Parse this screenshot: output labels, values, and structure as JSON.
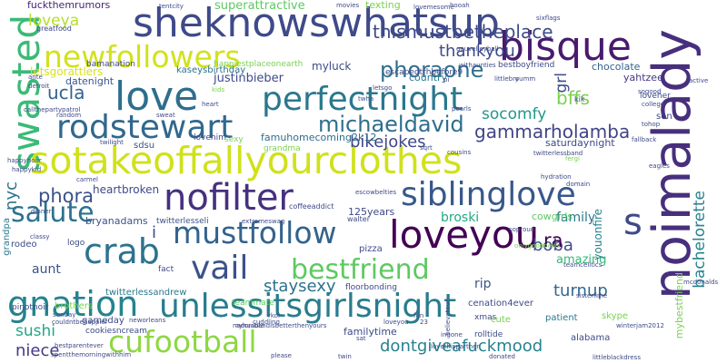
{
  "words": [
    {
      "text": "sheknowswhatsup",
      "color": "#3e4a89"
    },
    {
      "text": "bisque",
      "color": "#481b6d"
    },
    {
      "text": "newfollowers",
      "color": "#d2e21b"
    },
    {
      "text": "noimalady",
      "color": "#472f7d"
    },
    {
      "text": "love",
      "color": "#2e6e8e"
    },
    {
      "text": "perfectnight",
      "color": "#2a788e"
    },
    {
      "text": "swasted",
      "color": "#3aba76"
    },
    {
      "text": "rodstewart",
      "color": "#31688e"
    },
    {
      "text": "sotakeoffallyourclothes",
      "color": "#d0e11c"
    },
    {
      "text": "nofilter",
      "color": "#46307e"
    },
    {
      "text": "siblinglove",
      "color": "#38588c"
    },
    {
      "text": "salute",
      "color": "#2c728e"
    },
    {
      "text": "mustfollow",
      "color": "#33638d"
    },
    {
      "text": "loveyou",
      "color": "#440154"
    },
    {
      "text": "crab",
      "color": "#2c738e"
    },
    {
      "text": "vail",
      "color": "#3b528b"
    },
    {
      "text": "bestfriend",
      "color": "#5ec962"
    },
    {
      "text": "gnation",
      "color": "#25838e"
    },
    {
      "text": "unlessitsgirlsnight",
      "color": "#287c8e"
    },
    {
      "text": "cufootball",
      "color": "#8fd744"
    },
    {
      "text": "dontgiveafuckmood",
      "color": "#26828e"
    },
    {
      "text": "s",
      "color": "#3e4a89"
    },
    {
      "text": "thismustbetheplace",
      "color": "#3e4a89"
    },
    {
      "text": "loveya",
      "color": "#b5de2b"
    },
    {
      "text": "thankyou",
      "color": "#3e4a89"
    },
    {
      "text": "phoraone",
      "color": "#2d708e"
    },
    {
      "text": "michaeldavid",
      "color": "#2e6f8e"
    },
    {
      "text": "gammarholamba",
      "color": "#414487"
    },
    {
      "text": "bikejokes",
      "color": "#3f4788"
    },
    {
      "text": "bachelorette",
      "color": "#25838e"
    },
    {
      "text": "bffs",
      "color": "#7ad151"
    },
    {
      "text": "socomfy",
      "color": "#1f988b"
    },
    {
      "text": "ucla",
      "color": "#33638d"
    },
    {
      "text": "fuckthemrumors",
      "color": "#482475"
    },
    {
      "text": "superattractive",
      "color": "#5ec962"
    },
    {
      "text": "texting",
      "color": "#7ad151"
    },
    {
      "text": "justinbieber",
      "color": "#3e4a89"
    },
    {
      "text": "phora",
      "color": "#3b528b"
    },
    {
      "text": "nyc",
      "color": "#2c728e"
    },
    {
      "text": "heartbroken",
      "color": "#3e4a89"
    },
    {
      "text": "bryanadams",
      "color": "#3b528b"
    },
    {
      "text": "broski",
      "color": "#22a884"
    },
    {
      "text": "family",
      "color": "#2a788e"
    },
    {
      "text": "boba",
      "color": "#3e4a89"
    },
    {
      "text": "ra",
      "color": "#440154"
    },
    {
      "text": "turnup",
      "color": "#31688e"
    },
    {
      "text": "staysexy",
      "color": "#2c728e"
    },
    {
      "text": "rip",
      "color": "#3b528b"
    },
    {
      "text": "amazing",
      "color": "#35b779"
    },
    {
      "text": "aunt",
      "color": "#3b528b"
    },
    {
      "text": "sushi",
      "color": "#22a884"
    },
    {
      "text": "niece",
      "color": "#443983"
    },
    {
      "text": "i",
      "color": "#3e4a89"
    },
    {
      "text": "myluck",
      "color": "#3e4a89"
    },
    {
      "text": "country",
      "color": "#2a788e"
    },
    {
      "text": "letsgorattlers",
      "color": "#d8e219"
    },
    {
      "text": "datenight",
      "color": "#39568c"
    },
    {
      "text": "kaseysbirthday",
      "color": "#2c728e"
    },
    {
      "text": "bestboyfriend",
      "color": "#3e4a89"
    },
    {
      "text": "chocolate",
      "color": "#33638d"
    },
    {
      "text": "yahtzee",
      "color": "#453781"
    },
    {
      "text": "happiestplaceonearth",
      "color": "#7ad151"
    },
    {
      "text": "escapedtrhbefore9",
      "color": "#3e4a89"
    },
    {
      "text": "grl",
      "color": "#3e4a89"
    },
    {
      "text": "famuhomecoming2k12",
      "color": "#2e6e8e"
    },
    {
      "text": "saturdaynight",
      "color": "#3e4a89"
    },
    {
      "text": "grandma",
      "color": "#7ad151"
    },
    {
      "text": "sdsu",
      "color": "#3b528b"
    },
    {
      "text": "125years",
      "color": "#3e4a89"
    },
    {
      "text": "cowgirls",
      "color": "#5ec962"
    },
    {
      "text": "youonfire",
      "color": "#25838e"
    },
    {
      "text": "twitterlesseli",
      "color": "#3b528b"
    },
    {
      "text": "rodeo",
      "color": "#3e4a89"
    },
    {
      "text": "gameday",
      "color": "#3e4a89"
    },
    {
      "text": "twitterlessandrew",
      "color": "#2a788e"
    },
    {
      "text": "floorbonding",
      "color": "#3e4a89"
    },
    {
      "text": "familytime",
      "color": "#3e4a89"
    },
    {
      "text": "cookiesncream",
      "color": "#3e4a89"
    },
    {
      "text": "alabama",
      "color": "#3e4a89"
    },
    {
      "text": "rolltide",
      "color": "#3e4a89"
    },
    {
      "text": "cenation4ever",
      "color": "#3e4a89"
    },
    {
      "text": "patient",
      "color": "#2a788e"
    },
    {
      "text": "skype",
      "color": "#7ad151"
    },
    {
      "text": "xmas",
      "color": "#3e4a89"
    },
    {
      "text": "cute",
      "color": "#7ad151"
    },
    {
      "text": "pizza",
      "color": "#3e4a89"
    },
    {
      "text": "fact",
      "color": "#3e4a89"
    },
    {
      "text": "logo",
      "color": "#3e4a89"
    },
    {
      "text": "grandpa",
      "color": "#2a788e"
    },
    {
      "text": "brothers",
      "color": "#7ad151"
    },
    {
      "text": "pinotnoir",
      "color": "#3e4a89"
    },
    {
      "text": "teammate",
      "color": "#5ec962"
    },
    {
      "text": "mybestfriend",
      "color": "#7ad151"
    },
    {
      "text": "loveher",
      "color": "#3e4a89"
    },
    {
      "text": "greatfood",
      "color": "#3e4a89"
    },
    {
      "text": "bamanation",
      "color": "#3e4a89"
    },
    {
      "text": "lovehim",
      "color": "#3e4a89"
    },
    {
      "text": "sexy",
      "color": "#7ad151"
    },
    {
      "text": "coffeeaddict",
      "color": "#3e4a89"
    },
    {
      "text": "walter",
      "color": "#3e4a89"
    },
    {
      "text": "tentcity",
      "color": "#3e4a89"
    },
    {
      "text": "movies",
      "color": "#3e4a89"
    },
    {
      "text": "lovemesome",
      "color": "#3e4a89"
    },
    {
      "text": "hooah",
      "color": "#3e4a89"
    },
    {
      "text": "gouvelleyball",
      "color": "#3e4a89"
    },
    {
      "text": "withaunties",
      "color": "#3e4a89"
    },
    {
      "text": "pi",
      "color": "#3e4a89"
    },
    {
      "text": "kids",
      "color": "#7ad151"
    },
    {
      "text": "sweat",
      "color": "#3e4a89"
    },
    {
      "text": "heart",
      "color": "#3e4a89"
    },
    {
      "text": "pearls",
      "color": "#3e4a89"
    },
    {
      "text": "kik",
      "color": "#3e4a89"
    },
    {
      "text": "college",
      "color": "#3e4a89"
    },
    {
      "text": "fallback",
      "color": "#3e4a89"
    },
    {
      "text": "eagles",
      "color": "#3e4a89"
    },
    {
      "text": "hydration",
      "color": "#3e4a89"
    },
    {
      "text": "domain",
      "color": "#3e4a89"
    },
    {
      "text": "cousins",
      "color": "#3e4a89"
    },
    {
      "text": "twilight",
      "color": "#3e4a89"
    },
    {
      "text": "carmel",
      "color": "#3e4a89"
    },
    {
      "text": "cuddling",
      "color": "#3e4a89"
    },
    {
      "text": "adorable",
      "color": "#3e4a89"
    },
    {
      "text": "loveyou",
      "color": "#3e4a89"
    },
    {
      "text": "neworleans",
      "color": "#3e4a89"
    },
    {
      "text": "bestparentever",
      "color": "#3e4a89"
    },
    {
      "text": "please",
      "color": "#3e4a89"
    },
    {
      "text": "sat",
      "color": "#3e4a89"
    },
    {
      "text": "twin",
      "color": "#3e4a89"
    },
    {
      "text": "ingone",
      "color": "#3e4a89"
    },
    {
      "text": "donated",
      "color": "#3e4a89"
    },
    {
      "text": "littleblackdress",
      "color": "#3e4a89"
    },
    {
      "text": "winterjam2012",
      "color": "#3e4a89"
    },
    {
      "text": "lovethispartner",
      "color": "#3e4a89"
    },
    {
      "text": "onlygoodnews",
      "color": "#7ad151"
    },
    {
      "text": "teamcelltics",
      "color": "#3e4a89"
    },
    {
      "text": "sisterlime",
      "color": "#3e4a89"
    },
    {
      "text": "sunday",
      "color": "#3e4a89"
    },
    {
      "text": "mcdonalds",
      "color": "#3e4a89"
    },
    {
      "text": "active",
      "color": "#3e4a89"
    },
    {
      "text": "son",
      "color": "#3e4a89"
    },
    {
      "text": "random",
      "color": "#3e4a89"
    },
    {
      "text": "dinner",
      "color": "#3e4a89"
    },
    {
      "text": "classy",
      "color": "#3e4a89"
    },
    {
      "text": "detroit",
      "color": "#3e4a89"
    },
    {
      "text": "ante",
      "color": "#3e4a89"
    },
    {
      "text": "fergi",
      "color": "#7ad151"
    },
    {
      "text": "believetour",
      "color": "#3e4a89"
    },
    {
      "text": "fun",
      "color": "#3e4a89"
    },
    {
      "text": "23",
      "color": "#3e4a89"
    },
    {
      "text": "myhusbandisbetterthenyours",
      "color": "#3e4a89"
    },
    {
      "text": "couldntbehappier",
      "color": "#3e4a89"
    },
    {
      "text": "callthepartypatrol",
      "color": "#3e4a89"
    },
    {
      "text": "sixflags",
      "color": "#3e4a89"
    },
    {
      "text": "littlebro",
      "color": "#3e4a89"
    },
    {
      "text": "escowbelties",
      "color": "#3e4a89"
    },
    {
      "text": "yumm",
      "color": "#3e4a89"
    },
    {
      "text": "twitterlessband",
      "color": "#3e4a89"
    },
    {
      "text": "spentthemorningwithhim",
      "color": "#3e4a89"
    },
    {
      "text": "soproud",
      "color": "#3e4a89"
    },
    {
      "text": "extremeswag",
      "color": "#3e4a89"
    },
    {
      "text": "happykid",
      "color": "#3e4a89"
    },
    {
      "text": "letsgo",
      "color": "#3e4a89"
    },
    {
      "text": "sogood",
      "color": "#3e4a89"
    },
    {
      "text": "rkoi",
      "color": "#3e4a89"
    },
    {
      "text": "sqrt",
      "color": "#3e4a89"
    },
    {
      "text": "twha",
      "color": "#3e4a89"
    },
    {
      "text": "happyhour",
      "color": "#3e4a89"
    },
    {
      "text": "tohop",
      "color": "#3e4a89"
    }
  ]
}
